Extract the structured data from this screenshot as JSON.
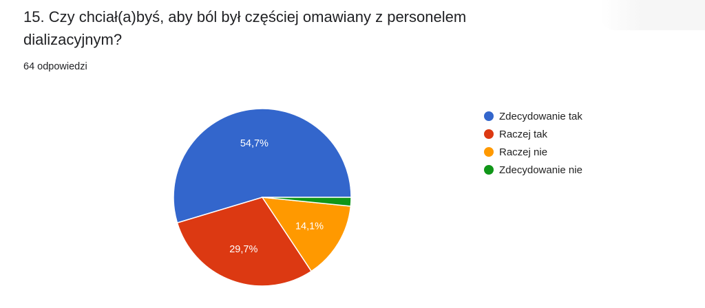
{
  "question": {
    "title": "15. Czy chciał(a)byś, aby ból był częściej omawiany z personelem dializacyjnym?",
    "responses": "64 odpowiedzi"
  },
  "chart_data": {
    "type": "pie",
    "slices": [
      {
        "label": "Zdecydowanie tak",
        "value": 54.7,
        "display": "54,7%",
        "color": "#3366cc"
      },
      {
        "label": "Raczej tak",
        "value": 29.7,
        "display": "29,7%",
        "color": "#dc3912"
      },
      {
        "label": "Raczej nie",
        "value": 14.1,
        "display": "14,1%",
        "color": "#ff9900"
      },
      {
        "label": "Zdecydowanie nie",
        "value": 1.6,
        "display": "",
        "color": "#109618"
      }
    ],
    "legend_position": "right"
  }
}
